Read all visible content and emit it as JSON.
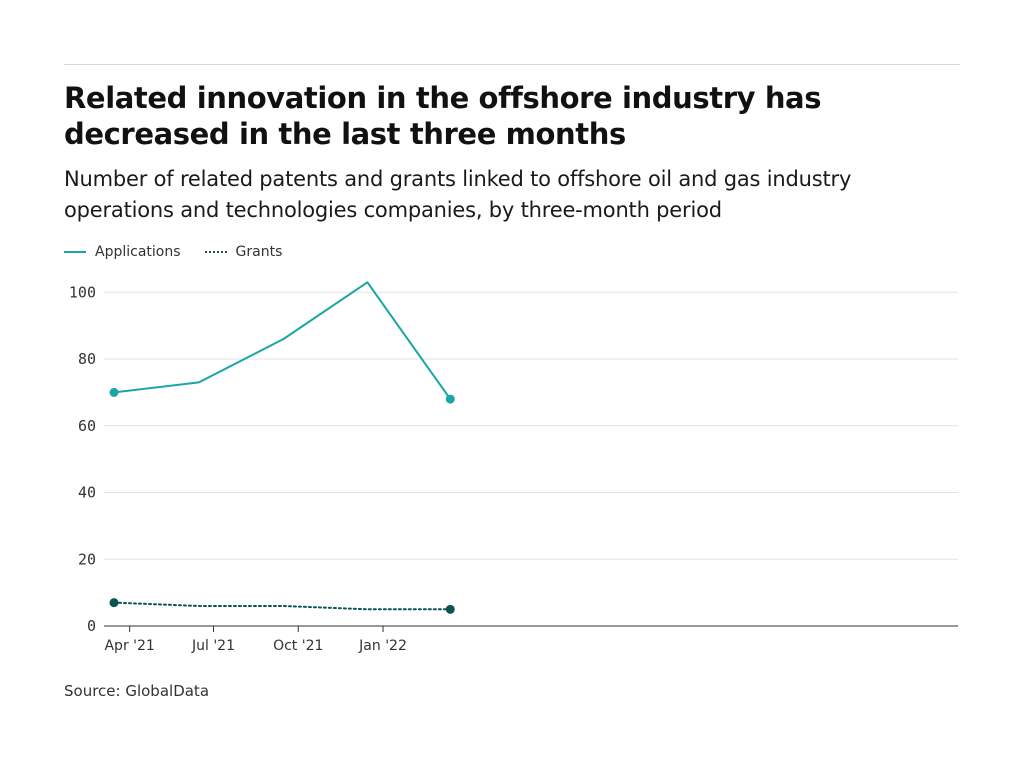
{
  "header": {
    "title": "Related innovation in the offshore industry has decreased in the last three months",
    "subtitle": "Number of related patents and grants linked to offshore oil and gas industry operations and technologies companies, by three-month period"
  },
  "footer": {
    "source": "Source: GlobalData"
  },
  "colors": {
    "applications": "#1aa5a8",
    "grants": "#0b5454",
    "grid": "#e3e3e3",
    "axis": "#333333"
  },
  "chart_data": {
    "type": "line",
    "title": "Related innovation in the offshore industry has decreased in the last three months",
    "subtitle": "Number of related patents and grants linked to offshore oil and gas industry operations and technologies companies, by three-month period",
    "x": [
      "2021-03",
      "2021-06",
      "2021-09",
      "2021-12",
      "2022-03"
    ],
    "x_ticks": [
      "Apr '21",
      "Jul '21",
      "Oct '21",
      "Jan '22"
    ],
    "y_ticks": [
      0,
      20,
      40,
      60,
      80,
      100
    ],
    "ylim": [
      0,
      105
    ],
    "grid": true,
    "legend_position": "top-left",
    "series": [
      {
        "name": "Applications",
        "style": "solid",
        "values": [
          70,
          73,
          86,
          103,
          68
        ]
      },
      {
        "name": "Grants",
        "style": "dotted",
        "values": [
          7,
          6,
          6,
          5,
          5
        ]
      }
    ]
  }
}
